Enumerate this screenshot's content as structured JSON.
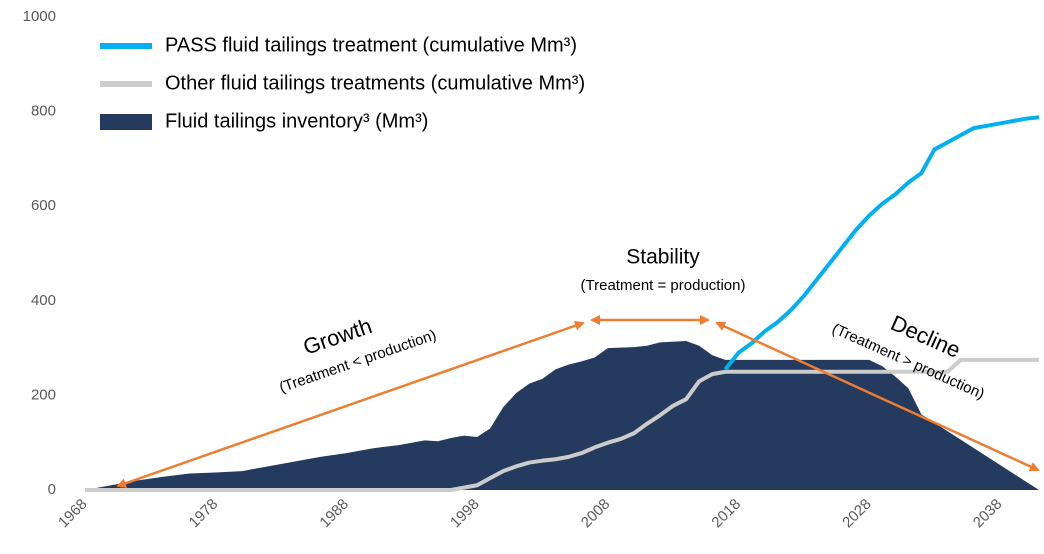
{
  "chart_data": {
    "type": "line",
    "series": [
      {
        "name": "PASS fluid tailings treatment (cumulative Mm³)",
        "type": "line",
        "color": "#00b0f0",
        "x": [
          2017,
          2018,
          2019,
          2020,
          2021,
          2022,
          2023,
          2024,
          2025,
          2026,
          2027,
          2028,
          2029,
          2030,
          2031,
          2032,
          2033,
          2034,
          2035,
          2036,
          2037,
          2038,
          2039,
          2040,
          2041
        ],
        "values": [
          255,
          290,
          310,
          335,
          355,
          380,
          410,
          445,
          480,
          515,
          550,
          580,
          605,
          625,
          650,
          670,
          720,
          735,
          750,
          765,
          770,
          775,
          780,
          785,
          788
        ]
      },
      {
        "name": "Other fluid tailings treatments (cumulative Mm³)",
        "type": "line",
        "color": "#cccccc",
        "x": [
          1968,
          1996,
          1997,
          1998,
          1999,
          2000,
          2001,
          2002,
          2003,
          2004,
          2005,
          2006,
          2007,
          2008,
          2009,
          2010,
          2011,
          2012,
          2013,
          2014,
          2015,
          2016,
          2017,
          2034,
          2035,
          2041
        ],
        "values": [
          0,
          0,
          5,
          10,
          25,
          40,
          50,
          58,
          62,
          65,
          70,
          78,
          90,
          100,
          108,
          120,
          140,
          158,
          178,
          192,
          230,
          245,
          250,
          250,
          275,
          275
        ]
      },
      {
        "name": "Fluid tailings inventory³ (Mm³)",
        "type": "area",
        "color": "#243a5e",
        "x": [
          1968,
          1969,
          1970,
          1972,
          1974,
          1976,
          1978,
          1980,
          1982,
          1984,
          1986,
          1988,
          1990,
          1992,
          1994,
          1995,
          1996,
          1997,
          1998,
          1999,
          2000,
          2001,
          2002,
          2003,
          2004,
          2005,
          2006,
          2007,
          2008,
          2010,
          2011,
          2012,
          2014,
          2015,
          2016,
          2017,
          2028,
          2029,
          2030,
          2031,
          2032,
          2041
        ],
        "values": [
          0,
          5,
          10,
          20,
          28,
          35,
          37,
          40,
          50,
          60,
          70,
          78,
          88,
          95,
          105,
          103,
          110,
          115,
          112,
          130,
          175,
          205,
          225,
          235,
          255,
          265,
          272,
          280,
          300,
          302,
          305,
          312,
          315,
          305,
          285,
          275,
          275,
          262,
          240,
          215,
          160,
          0
        ]
      }
    ],
    "xlim": [
      1968,
      2041
    ],
    "xticks": [
      1968,
      1978,
      1988,
      1998,
      2008,
      2018,
      2028,
      2038
    ],
    "ylim": [
      0,
      1000
    ],
    "yticks": [
      0,
      200,
      400,
      600,
      800,
      1000
    ],
    "annotations": [
      "Growth",
      "(Treatment < production)",
      "Stability",
      "(Treatment = production)",
      "Decline",
      "(Treatment > production)"
    ]
  }
}
